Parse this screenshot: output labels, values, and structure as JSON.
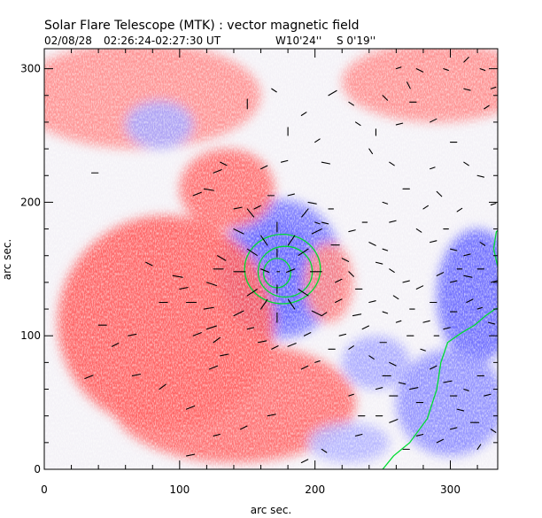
{
  "chart_data": {
    "type": "heatmap",
    "title": "Solar Flare Telescope (MTK) : vector magnetic field",
    "subtitle": {
      "date": "02/08/28",
      "time_range": "02:26:24-02:27:30 UT",
      "pos_w": "W10'24''",
      "pos_s": "S 0'19''"
    },
    "xlabel": "arc sec.",
    "ylabel": "arc sec.",
    "xlim": [
      0,
      335
    ],
    "ylim": [
      0,
      315
    ],
    "x_ticks": [
      0,
      100,
      200,
      300
    ],
    "y_ticks": [
      0,
      100,
      200,
      300
    ],
    "colors": {
      "positive": "#ff0000",
      "negative": "#0000ff",
      "contour": "#00dd33",
      "vector": "#000000"
    },
    "regions": [
      {
        "name": "negative-umbra",
        "polarity": -1,
        "cx": 172,
        "cy": 148,
        "rx": 30,
        "ry": 38,
        "strength": 1.0
      },
      {
        "name": "negative-halo",
        "polarity": -1,
        "cx": 175,
        "cy": 150,
        "rx": 45,
        "ry": 52,
        "strength": 0.55
      },
      {
        "name": "positive-plage-left",
        "polarity": 1,
        "cx": 90,
        "cy": 110,
        "rx": 80,
        "ry": 80,
        "strength": 0.65
      },
      {
        "name": "positive-plage-lower",
        "polarity": 1,
        "cx": 140,
        "cy": 50,
        "rx": 90,
        "ry": 45,
        "strength": 0.6
      },
      {
        "name": "positive-top",
        "polarity": 1,
        "cx": 70,
        "cy": 280,
        "rx": 90,
        "ry": 40,
        "strength": 0.45
      },
      {
        "name": "positive-topright",
        "polarity": 1,
        "cx": 290,
        "cy": 290,
        "rx": 70,
        "ry": 30,
        "strength": 0.45
      },
      {
        "name": "positive-mid",
        "polarity": 1,
        "cx": 135,
        "cy": 210,
        "rx": 35,
        "ry": 30,
        "strength": 0.6
      },
      {
        "name": "positive-east",
        "polarity": 1,
        "cx": 210,
        "cy": 140,
        "rx": 18,
        "ry": 30,
        "strength": 0.5
      },
      {
        "name": "negative-top",
        "polarity": -1,
        "cx": 85,
        "cy": 258,
        "rx": 25,
        "ry": 18,
        "strength": 0.35
      },
      {
        "name": "negative-right",
        "polarity": -1,
        "cx": 320,
        "cy": 130,
        "rx": 30,
        "ry": 50,
        "strength": 0.6
      },
      {
        "name": "negative-lowright",
        "polarity": -1,
        "cx": 300,
        "cy": 50,
        "rx": 40,
        "ry": 40,
        "strength": 0.45
      },
      {
        "name": "negative-mid",
        "polarity": -1,
        "cx": 245,
        "cy": 80,
        "rx": 25,
        "ry": 20,
        "strength": 0.35
      },
      {
        "name": "negative-bottom",
        "polarity": -1,
        "cx": 225,
        "cy": 20,
        "rx": 30,
        "ry": 15,
        "strength": 0.3
      }
    ],
    "contours": [
      {
        "name": "umbra-inner",
        "cx": 172,
        "cy": 147,
        "rx": 10,
        "ry": 11
      },
      {
        "name": "umbra-outer",
        "cx": 178,
        "cy": 148,
        "rx": 20,
        "ry": 19
      },
      {
        "name": "umbra-arc",
        "cx": 176,
        "cy": 150,
        "rx": 28,
        "ry": 26
      }
    ],
    "neutral_line": [
      [
        250,
        0
      ],
      [
        258,
        10
      ],
      [
        270,
        20
      ],
      [
        283,
        38
      ],
      [
        290,
        60
      ],
      [
        293,
        80
      ],
      [
        298,
        95
      ],
      [
        308,
        102
      ],
      [
        318,
        108
      ],
      [
        326,
        115
      ],
      [
        333,
        120
      ],
      [
        340,
        122
      ]
    ],
    "right_contour": [
      [
        340,
        183
      ],
      [
        334,
        178
      ],
      [
        332,
        165
      ],
      [
        335,
        152
      ],
      [
        340,
        147
      ]
    ],
    "vectors": [
      [
        172,
        148,
        0,
        0
      ],
      [
        160,
        150,
        5,
        -2
      ],
      [
        185,
        150,
        -5,
        -2
      ],
      [
        172,
        165,
        0,
        -5
      ],
      [
        172,
        132,
        0,
        5
      ],
      [
        150,
        165,
        6,
        -4
      ],
      [
        195,
        165,
        -6,
        -4
      ],
      [
        150,
        130,
        6,
        4
      ],
      [
        195,
        130,
        -6,
        4
      ],
      [
        160,
        175,
        4,
        -6
      ],
      [
        185,
        175,
        -4,
        -6
      ],
      [
        160,
        120,
        4,
        6
      ],
      [
        185,
        120,
        -4,
        6
      ],
      [
        140,
        148,
        7,
        0
      ],
      [
        205,
        148,
        -7,
        0
      ],
      [
        140,
        180,
        6,
        -3
      ],
      [
        205,
        180,
        -6,
        -3
      ],
      [
        140,
        115,
        6,
        3
      ],
      [
        205,
        115,
        -6,
        3
      ],
      [
        172,
        185,
        0,
        -6
      ],
      [
        172,
        110,
        0,
        6
      ],
      [
        150,
        195,
        4,
        -5
      ],
      [
        195,
        195,
        -4,
        -5
      ],
      [
        120,
        140,
        6,
        -2
      ],
      [
        125,
        150,
        6,
        0
      ],
      [
        128,
        160,
        5,
        -3
      ],
      [
        118,
        120,
        6,
        1
      ],
      [
        110,
        100,
        5,
        2
      ],
      [
        120,
        105,
        6,
        2
      ],
      [
        125,
        95,
        4,
        3
      ],
      [
        130,
        85,
        5,
        1
      ],
      [
        122,
        75,
        5,
        2
      ],
      [
        105,
        125,
        6,
        0
      ],
      [
        100,
        135,
        5,
        1
      ],
      [
        95,
        145,
        6,
        -1
      ],
      [
        85,
        125,
        5,
        0
      ],
      [
        75,
        155,
        4,
        -2
      ],
      [
        62,
        100,
        5,
        1
      ],
      [
        30,
        68,
        5,
        2
      ],
      [
        35,
        222,
        4,
        0
      ],
      [
        125,
        222,
        5,
        2
      ],
      [
        118,
        210,
        6,
        -1
      ],
      [
        130,
        230,
        4,
        -2
      ],
      [
        110,
        205,
        5,
        2
      ],
      [
        140,
        195,
        5,
        1
      ],
      [
        155,
        195,
        4,
        2
      ],
      [
        165,
        205,
        4,
        0
      ],
      [
        180,
        205,
        4,
        1
      ],
      [
        195,
        200,
        5,
        -1
      ],
      [
        205,
        185,
        4,
        -1
      ],
      [
        212,
        168,
        5,
        0
      ],
      [
        220,
        158,
        4,
        -2
      ],
      [
        225,
        148,
        3,
        -3
      ],
      [
        215,
        125,
        4,
        2
      ],
      [
        205,
        115,
        3,
        2
      ],
      [
        192,
        100,
        4,
        2
      ],
      [
        180,
        92,
        5,
        2
      ],
      [
        168,
        90,
        4,
        2
      ],
      [
        158,
        95,
        5,
        1
      ],
      [
        150,
        105,
        4,
        1
      ],
      [
        200,
        185,
        3,
        -1
      ],
      [
        210,
        195,
        3,
        0
      ],
      [
        215,
        140,
        4,
        2
      ],
      [
        228,
        115,
        5,
        1
      ],
      [
        235,
        105,
        4,
        2
      ],
      [
        248,
        95,
        4,
        0
      ],
      [
        240,
        85,
        3,
        -2
      ],
      [
        255,
        80,
        4,
        -2
      ],
      [
        250,
        70,
        5,
        0
      ],
      [
        245,
        60,
        4,
        1
      ],
      [
        255,
        55,
        5,
        0
      ],
      [
        262,
        65,
        4,
        -1
      ],
      [
        270,
        60,
        5,
        1
      ],
      [
        275,
        50,
        4,
        0
      ],
      [
        285,
        75,
        4,
        2
      ],
      [
        295,
        65,
        5,
        1
      ],
      [
        300,
        55,
        4,
        0
      ],
      [
        305,
        45,
        4,
        -1
      ],
      [
        310,
        60,
        3,
        -1
      ],
      [
        320,
        70,
        4,
        0
      ],
      [
        325,
        55,
        4,
        1
      ],
      [
        315,
        35,
        5,
        0
      ],
      [
        300,
        30,
        4,
        1
      ],
      [
        290,
        20,
        4,
        2
      ],
      [
        275,
        25,
        4,
        1
      ],
      [
        265,
        15,
        4,
        0
      ],
      [
        255,
        35,
        5,
        2
      ],
      [
        245,
        40,
        4,
        0
      ],
      [
        232,
        40,
        4,
        0
      ],
      [
        225,
        55,
        3,
        1
      ],
      [
        300,
        140,
        4,
        1
      ],
      [
        310,
        145,
        5,
        -1
      ],
      [
        320,
        150,
        4,
        0
      ],
      [
        330,
        140,
        4,
        1
      ],
      [
        312,
        125,
        4,
        2
      ],
      [
        320,
        120,
        3,
        1
      ],
      [
        328,
        110,
        4,
        -1
      ],
      [
        300,
        118,
        4,
        0
      ],
      [
        295,
        105,
        4,
        1
      ],
      [
        285,
        125,
        4,
        0
      ],
      [
        275,
        135,
        4,
        2
      ],
      [
        265,
        140,
        4,
        1
      ],
      [
        255,
        150,
        3,
        -2
      ],
      [
        245,
        155,
        4,
        -1
      ],
      [
        225,
        178,
        4,
        1
      ],
      [
        235,
        185,
        3,
        0
      ],
      [
        240,
        170,
        4,
        -2
      ],
      [
        250,
        165,
        3,
        -1
      ],
      [
        310,
        160,
        4,
        1
      ],
      [
        322,
        170,
        3,
        -2
      ],
      [
        150,
        270,
        0,
        6
      ],
      [
        210,
        280,
        5,
        3
      ],
      [
        225,
        275,
        3,
        -2
      ],
      [
        230,
        260,
        3,
        -2
      ],
      [
        245,
        250,
        0,
        4
      ],
      [
        260,
        258,
        4,
        1
      ],
      [
        270,
        275,
        4,
        0
      ],
      [
        285,
        260,
        4,
        2
      ],
      [
        300,
        245,
        4,
        0
      ],
      [
        310,
        230,
        3,
        -2
      ],
      [
        320,
        220,
        4,
        -1
      ],
      [
        275,
        300,
        4,
        -2
      ],
      [
        295,
        300,
        3,
        -1
      ],
      [
        310,
        285,
        4,
        -1
      ],
      [
        325,
        270,
        3,
        2
      ],
      [
        285,
        225,
        3,
        1
      ],
      [
        255,
        230,
        3,
        -2
      ],
      [
        240,
        240,
        2,
        -3
      ],
      [
        200,
        245,
        3,
        2
      ],
      [
        175,
        230,
        4,
        1
      ],
      [
        160,
        225,
        4,
        2
      ],
      [
        310,
        305,
        3,
        3
      ],
      [
        322,
        300,
        3,
        -1
      ],
      [
        335,
        300,
        2,
        -2
      ],
      [
        330,
        285,
        3,
        1
      ],
      [
        268,
        290,
        2,
        -4
      ],
      [
        260,
        300,
        3,
        1
      ],
      [
        250,
        280,
        3,
        -3
      ],
      [
        190,
        265,
        3,
        2
      ],
      [
        180,
        250,
        0,
        5
      ],
      [
        205,
        230,
        5,
        -1
      ],
      [
        290,
        208,
        3,
        -3
      ],
      [
        305,
        193,
        3,
        2
      ],
      [
        330,
        198,
        3,
        1
      ],
      [
        168,
        285,
        3,
        -2
      ],
      [
        105,
        45,
        5,
        2
      ],
      [
        85,
        60,
        4,
        3
      ],
      [
        65,
        70,
        5,
        1
      ],
      [
        50,
        92,
        4,
        2
      ],
      [
        40,
        108,
        5,
        0
      ],
      [
        165,
        40,
        5,
        1
      ],
      [
        145,
        30,
        4,
        2
      ],
      [
        125,
        25,
        4,
        1
      ],
      [
        105,
        10,
        5,
        1
      ],
      [
        230,
        25,
        4,
        1
      ],
      [
        205,
        15,
        3,
        -2
      ],
      [
        190,
        5,
        4,
        2
      ],
      [
        335,
        85,
        3,
        2
      ],
      [
        330,
        30,
        3,
        -2
      ],
      [
        320,
        15,
        2,
        3
      ],
      [
        240,
        125,
        4,
        1
      ],
      [
        250,
        118,
        3,
        -1
      ],
      [
        260,
        110,
        3,
        1
      ],
      [
        268,
        100,
        4,
        0
      ],
      [
        278,
        90,
        3,
        -1
      ],
      [
        270,
        120,
        3,
        0
      ],
      [
        280,
        110,
        4,
        1
      ],
      [
        288,
        100,
        3,
        0
      ],
      [
        258,
        130,
        3,
        -2
      ],
      [
        230,
        135,
        4,
        0
      ],
      [
        218,
        100,
        4,
        1
      ],
      [
        225,
        90,
        3,
        2
      ],
      [
        210,
        90,
        4,
        0
      ],
      [
        200,
        80,
        3,
        1
      ],
      [
        190,
        75,
        4,
        2
      ],
      [
        250,
        200,
        3,
        -1
      ],
      [
        265,
        210,
        4,
        0
      ],
      [
        280,
        195,
        3,
        2
      ],
      [
        255,
        185,
        4,
        1
      ],
      [
        275,
        180,
        3,
        -2
      ],
      [
        285,
        170,
        4,
        1
      ],
      [
        295,
        180,
        3,
        0
      ],
      [
        300,
        165,
        4,
        -1
      ],
      [
        305,
        150,
        3,
        0
      ],
      [
        290,
        145,
        4,
        2
      ]
    ]
  }
}
